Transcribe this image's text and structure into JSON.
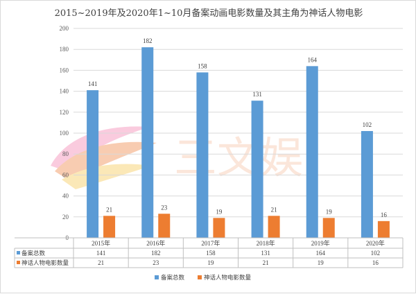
{
  "colors": {
    "series1": "#5b9bd5",
    "series2": "#ed7d31",
    "grid": "#d9d9d9",
    "axis": "#bfbfbf",
    "watermark_orange": "#f4a373",
    "watermark_pink": "#f7a1c4",
    "watermark_yellow": "#f9d77e"
  },
  "watermark": {
    "text": "三文娱"
  },
  "chart_data": {
    "type": "bar",
    "title": "2015~2019年及2020年1~10月备案动画电影数量及其主角为神话人物电影",
    "categories": [
      "2015年",
      "2016年",
      "2017年",
      "2018年",
      "2019年",
      "2020年"
    ],
    "series": [
      {
        "name": "备案总数",
        "color": "#5b9bd5",
        "values": [
          141,
          182,
          158,
          131,
          164,
          102
        ]
      },
      {
        "name": "神话人物电影数量",
        "color": "#ed7d31",
        "values": [
          21,
          23,
          19,
          21,
          19,
          16
        ]
      }
    ],
    "ylim": [
      0,
      200
    ],
    "yticks": [
      0,
      20,
      40,
      60,
      80,
      100,
      120,
      140,
      160,
      180,
      200
    ],
    "grid": true,
    "data_table": true,
    "legend_position": "bottom"
  }
}
